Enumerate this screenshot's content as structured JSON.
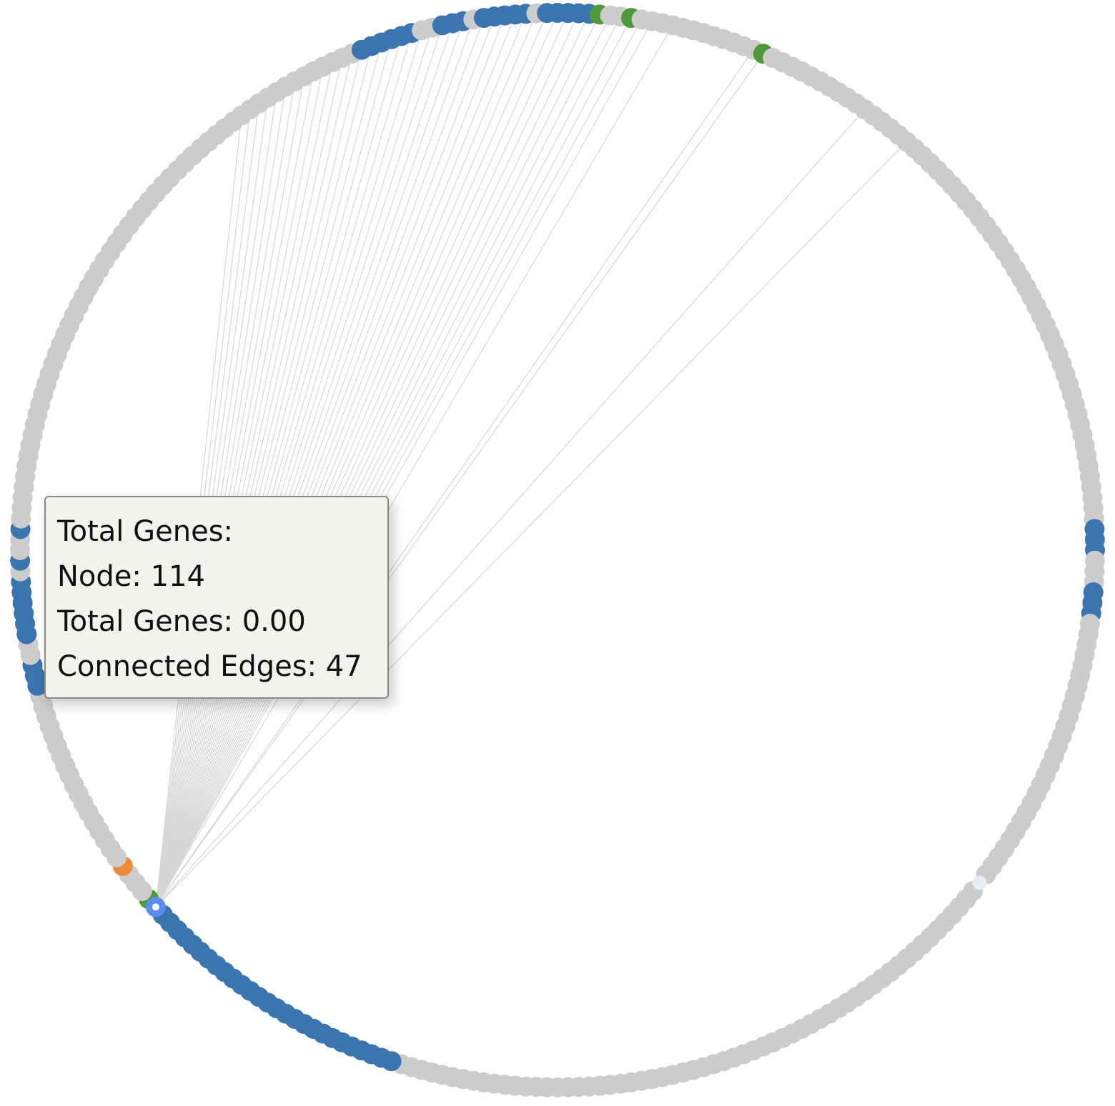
{
  "graph": {
    "layout": "circular",
    "node_count": 320,
    "colors": {
      "default_node": "#cccccc",
      "blue_node": "#3a75b0",
      "green_node": "#4e9a3a",
      "orange_node": "#f0883a",
      "selected_stroke": "#5b8def",
      "selected_fill": "#ffffff",
      "edge": "#d6d6d6"
    },
    "blue_node_ranges": [
      [
        0,
        1
      ],
      [
        2,
        3
      ],
      [
        78,
        80
      ],
      [
        84,
        86
      ],
      [
        176,
        199
      ],
      [
        200,
        204
      ],
      [
        227,
        229
      ],
      [
        232,
        237
      ],
      [
        239,
        240
      ],
      [
        241,
        242
      ],
      [
        301,
        306
      ],
      [
        309,
        312
      ],
      [
        313,
        318
      ],
      [
        319,
        319
      ]
    ],
    "green_nodes": [
      4,
      7,
      20,
      204
    ],
    "orange_nodes": [
      208
    ],
    "gray_overrides": [
      240,
      241,
      312,
      318
    ],
    "selected_nodes": [
      203,
      114
    ],
    "hub_node": 203,
    "hub_edge_targets": [
      31,
      36,
      20,
      19,
      11,
      9,
      8,
      7,
      6,
      5,
      4,
      3,
      2,
      1,
      0,
      319,
      318,
      317,
      316,
      315,
      314,
      313,
      312,
      311,
      310,
      309,
      308,
      307,
      306,
      305,
      304,
      303,
      302,
      301,
      300,
      299,
      298,
      297,
      296,
      295,
      294,
      293,
      292,
      291,
      290,
      289,
      288
    ]
  },
  "tooltip": {
    "heading": "Total Genes:",
    "node_line": "Node: 114",
    "total_line": "Total Genes: 0.00",
    "edges_line": "Connected Edges: 47"
  }
}
